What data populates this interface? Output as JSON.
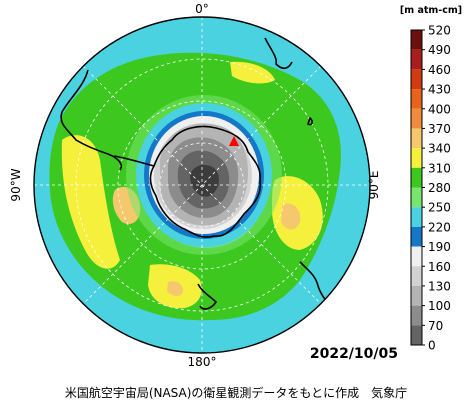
{
  "map": {
    "top_label": "0°",
    "bottom_label": "180°",
    "left_label": "90°W",
    "right_label": "90°E",
    "date": "2022/10/05",
    "credit": "米国航空宇宙局(NASA)の衛星観測データをもとに作成　気象庁",
    "marker": {
      "shape": "triangle",
      "color": "#ff0000"
    }
  },
  "colorbar": {
    "unit": "[m atm-cm]",
    "levels": [
      {
        "value": "520",
        "color": "#6b0f0f"
      },
      {
        "value": "490",
        "color": "#a81e1e"
      },
      {
        "value": "460",
        "color": "#d23a14"
      },
      {
        "value": "430",
        "color": "#e8641c"
      },
      {
        "value": "400",
        "color": "#f08a3c"
      },
      {
        "value": "370",
        "color": "#f5c86e"
      },
      {
        "value": "340",
        "color": "#f5f03c"
      },
      {
        "value": "310",
        "color": "#3cc81e"
      },
      {
        "value": "280",
        "color": "#78e66e"
      },
      {
        "value": "250",
        "color": "#4ad2e0"
      },
      {
        "value": "220",
        "color": "#1478c8"
      },
      {
        "value": "190",
        "color": "#f0f0f0"
      },
      {
        "value": "160",
        "color": "#d2d2d2"
      },
      {
        "value": "130",
        "color": "#b4b4b4"
      },
      {
        "value": "100",
        "color": "#8c8c8c"
      },
      {
        "value": "70",
        "color": "#646464"
      },
      {
        "value": "0",
        "color": "#3c3c3c"
      }
    ]
  }
}
